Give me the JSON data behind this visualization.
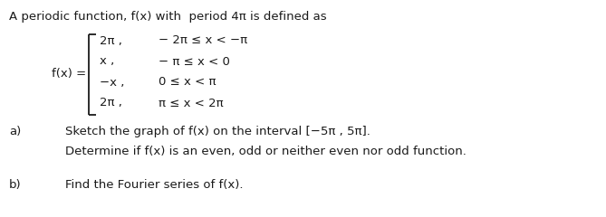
{
  "title_text": "A periodic function, f(x) with  period 4π is defined as",
  "fx_label": "f(x) =",
  "cases": [
    {
      "expr": "2π ,",
      "cond": "− 2π ≤ x < −π"
    },
    {
      "expr": "x ,",
      "cond": "− π ≤ x < 0"
    },
    {
      "expr": "−x ,",
      "cond": "0 ≤ x < π"
    },
    {
      "expr": "2π ,",
      "cond": "π ≤ x < 2π"
    }
  ],
  "part_a_label": "a)",
  "part_a_text1": "Sketch the graph of f(x) on the interval [−5π , 5π].",
  "part_a_text2": "Determine if f(x) is an even, odd or neither even nor odd function.",
  "part_b_label": "b)",
  "part_b_text": "Find the Fourier series of f(x).",
  "bg_color": "#ffffff",
  "text_color": "#1a1a1a",
  "font_size": 9.5
}
